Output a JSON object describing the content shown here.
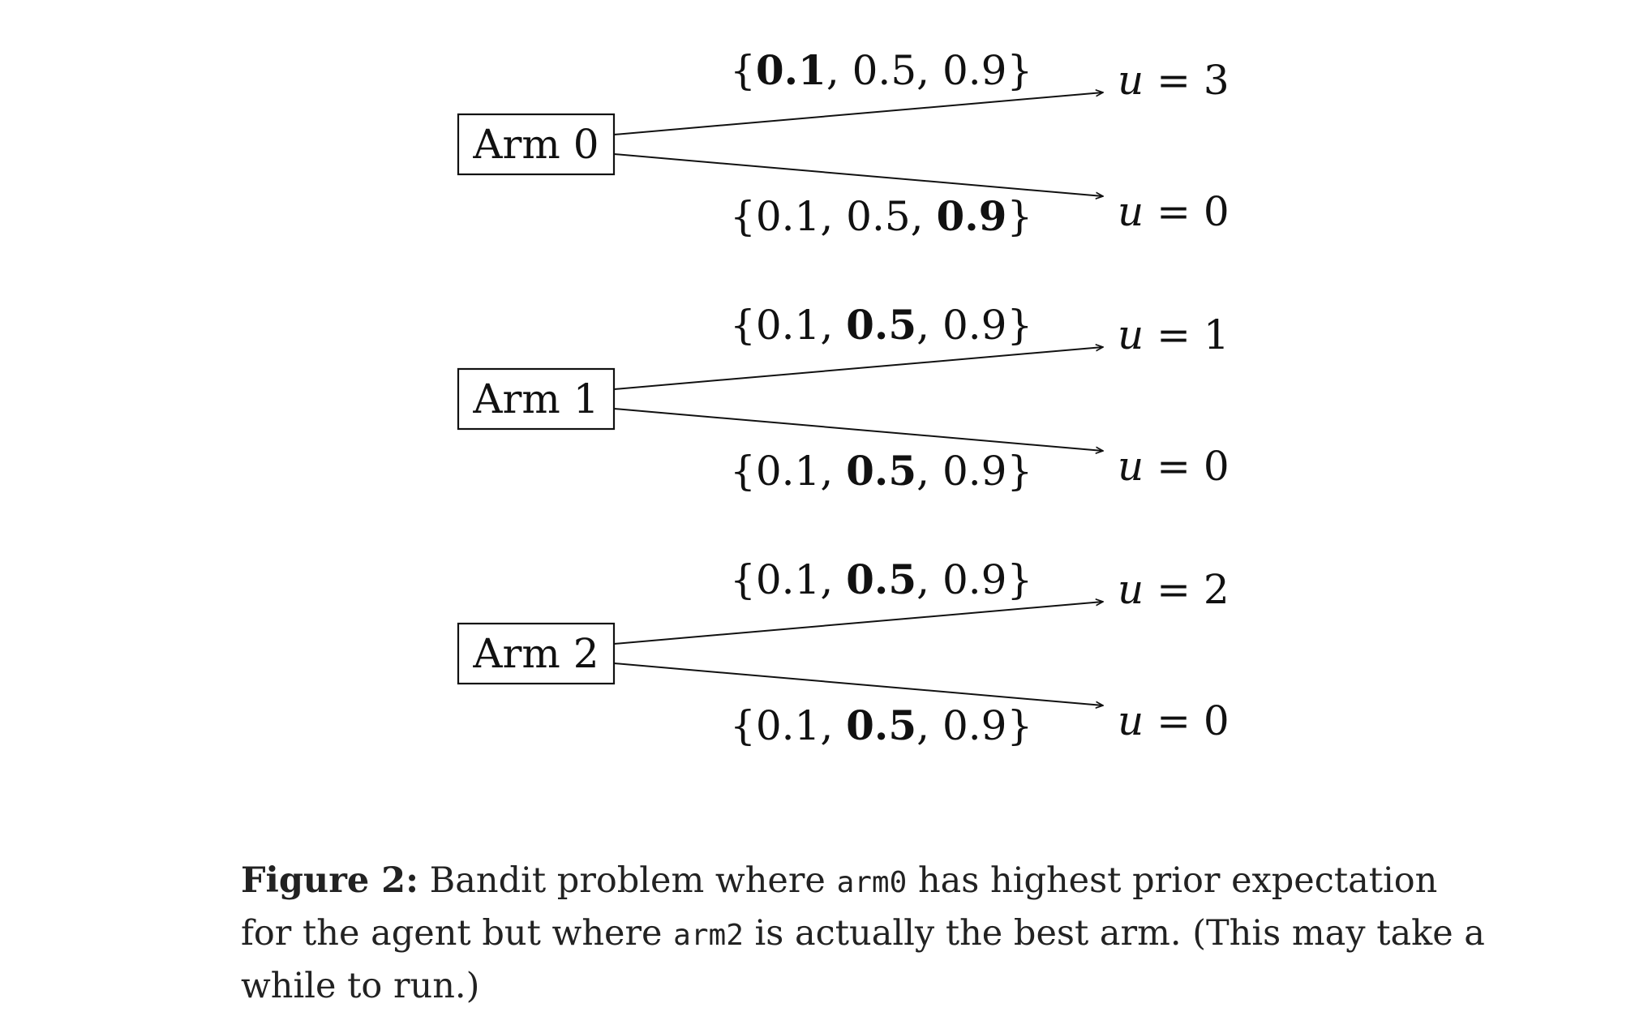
{
  "arms": [
    {
      "label": "Arm 0",
      "branches": [
        {
          "probs": [
            "0.1",
            "0.5",
            "0.9"
          ],
          "bold_index": 0,
          "utility": "3"
        },
        {
          "probs": [
            "0.1",
            "0.5",
            "0.9"
          ],
          "bold_index": 2,
          "utility": "0"
        }
      ]
    },
    {
      "label": "Arm 1",
      "branches": [
        {
          "probs": [
            "0.1",
            "0.5",
            "0.9"
          ],
          "bold_index": 1,
          "utility": "1"
        },
        {
          "probs": [
            "0.1",
            "0.5",
            "0.9"
          ],
          "bold_index": 1,
          "utility": "0"
        }
      ]
    },
    {
      "label": "Arm 2",
      "branches": [
        {
          "probs": [
            "0.1",
            "0.5",
            "0.9"
          ],
          "bold_index": 1,
          "utility": "2"
        },
        {
          "probs": [
            "0.1",
            "0.5",
            "0.9"
          ],
          "bold_index": 1,
          "utility": "0"
        }
      ]
    }
  ],
  "utility_variable": "u",
  "caption": {
    "label": "Figure 2:",
    "text_1": "Bandit problem where",
    "code_1": "arm0",
    "text_2": "has highest prior expectation for the agent but where",
    "code_2": "arm2",
    "text_3": "is actually the best arm. (This may take a while to run.)"
  },
  "colors": {
    "ink": "#111111",
    "caption_text": "#222222"
  }
}
